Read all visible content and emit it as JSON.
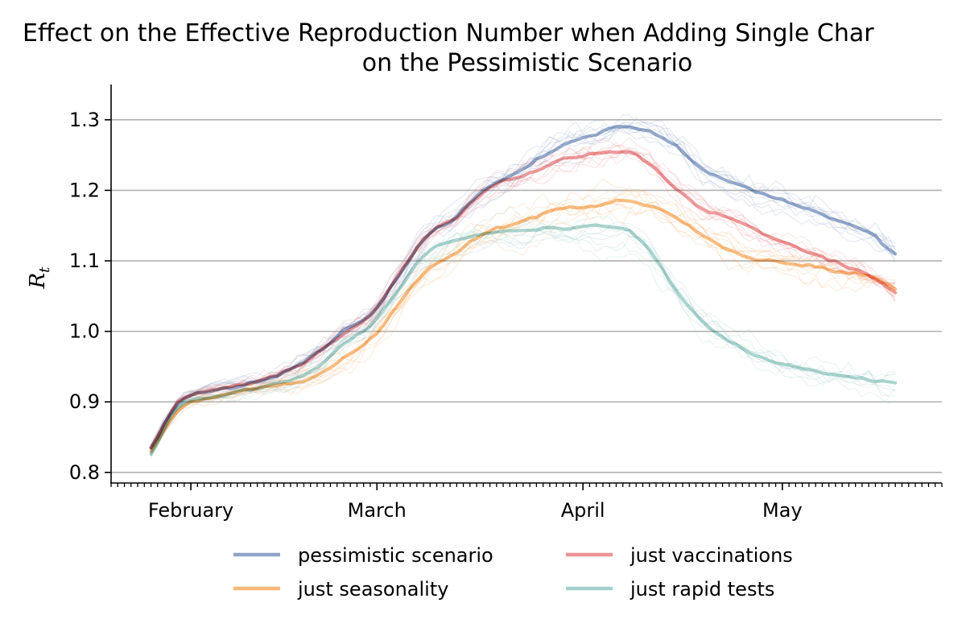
{
  "chart_data": {
    "type": "line",
    "title": "Effect on the Effective Reproduction Number when Adding Single Char",
    "subtitle": "on the Pessimistic Scenario",
    "xlabel": "",
    "ylabel": "R",
    "ylabel_sub": "t",
    "x_start": "2021-01-26",
    "x_end": "2021-05-18",
    "xlim": [
      "2021-01-20",
      "2021-05-25"
    ],
    "ylim": [
      0.785,
      1.35
    ],
    "yticks": [
      0.8,
      0.9,
      1.0,
      1.1,
      1.2,
      1.3
    ],
    "ytick_labels": [
      "0.8",
      "0.9",
      "1.0",
      "1.1",
      "1.2",
      "1.3"
    ],
    "xticks": [
      {
        "date": "2021-02-01",
        "label": "February"
      },
      {
        "date": "2021-03-01",
        "label": "March"
      },
      {
        "date": "2021-04-01",
        "label": "April"
      },
      {
        "date": "2021-05-01",
        "label": "May"
      }
    ],
    "grid": "y",
    "legend_position": "bottom-center",
    "series": [
      {
        "name": "pessimistic scenario",
        "color": "#8ea5c8",
        "values": [
          0.835,
          0.9,
          0.915,
          0.922,
          0.93,
          0.945,
          0.968,
          1.0,
          1.025,
          1.08,
          1.135,
          1.16,
          1.2,
          1.22,
          1.245,
          1.265,
          1.278,
          1.29,
          1.285,
          1.265,
          1.23,
          1.213,
          1.198,
          1.185,
          1.172,
          1.155,
          1.14,
          1.11
        ]
      },
      {
        "name": "just seasonality",
        "color": "#f8b877",
        "values": [
          0.83,
          0.888,
          0.905,
          0.913,
          0.92,
          0.926,
          0.938,
          0.962,
          0.99,
          1.04,
          1.085,
          1.11,
          1.138,
          1.15,
          1.163,
          1.175,
          1.178,
          1.185,
          1.178,
          1.162,
          1.135,
          1.115,
          1.102,
          1.097,
          1.093,
          1.085,
          1.078,
          1.06
        ]
      },
      {
        "name": "just vaccinations",
        "color": "#ec9496",
        "values": [
          0.835,
          0.9,
          0.915,
          0.922,
          0.93,
          0.945,
          0.968,
          1.0,
          1.025,
          1.08,
          1.135,
          1.16,
          1.195,
          1.215,
          1.228,
          1.245,
          1.252,
          1.254,
          1.24,
          1.205,
          1.175,
          1.16,
          1.142,
          1.125,
          1.11,
          1.095,
          1.08,
          1.055
        ]
      },
      {
        "name": "just rapid tests",
        "color": "#a5d1cc",
        "values": [
          0.826,
          0.893,
          0.905,
          0.913,
          0.92,
          0.93,
          0.948,
          0.982,
          1.01,
          1.06,
          1.112,
          1.128,
          1.138,
          1.142,
          1.144,
          1.145,
          1.148,
          1.146,
          1.12,
          1.06,
          1.015,
          0.985,
          0.965,
          0.952,
          0.943,
          0.937,
          0.932,
          0.927
        ]
      }
    ]
  }
}
